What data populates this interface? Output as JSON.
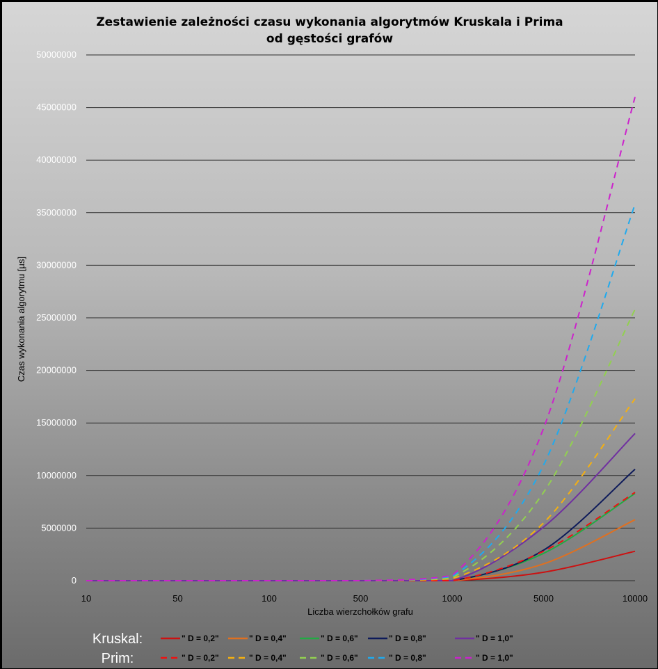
{
  "chart_data": {
    "type": "line",
    "title_lines": [
      "Zestawienie zależności czasu wykonania algorytmów Kruskala i Prima",
      "od gęstości grafów"
    ],
    "xlabel": "Liczba wierzchołków grafu",
    "ylabel": "Czas wykonania algorytmu [µs]",
    "categories": [
      "10",
      "50",
      "100",
      "500",
      "1000",
      "5000",
      "10000"
    ],
    "y_ticks": [
      "0",
      "5000000",
      "10000000",
      "15000000",
      "20000000",
      "25000000",
      "30000000",
      "35000000",
      "40000000",
      "45000000",
      "50000000"
    ],
    "ylim": [
      0,
      50000000
    ],
    "grid": true,
    "legend_placement": "bottom",
    "legend_groups": [
      {
        "label": "Kruskal:",
        "style": "solid",
        "series_indices": [
          0,
          1,
          2,
          3,
          4
        ]
      },
      {
        "label": "Prim:",
        "style": "dashed",
        "series_indices": [
          5,
          6,
          7,
          8,
          9
        ]
      }
    ],
    "series": [
      {
        "name": "\" D = 0,2\"",
        "group": "Kruskal",
        "color": "#cc1111",
        "dash": false,
        "values": [
          0,
          0,
          0,
          0,
          0,
          800000,
          2800000
        ]
      },
      {
        "name": "\" D = 0,4\"",
        "group": "Kruskal",
        "color": "#e07020",
        "dash": false,
        "values": [
          0,
          0,
          0,
          0,
          0,
          1600000,
          5800000
        ]
      },
      {
        "name": "\" D = 0,6\"",
        "group": "Kruskal",
        "color": "#22aa44",
        "dash": false,
        "values": [
          0,
          0,
          0,
          0,
          0,
          2600000,
          8300000
        ]
      },
      {
        "name": "\" D = 0,8\"",
        "group": "Kruskal",
        "color": "#0d1a5a",
        "dash": false,
        "values": [
          0,
          0,
          0,
          0,
          0,
          2900000,
          10600000
        ]
      },
      {
        "name": "\" D = 1,0\"",
        "group": "Kruskal",
        "color": "#7030a0",
        "dash": false,
        "values": [
          0,
          0,
          0,
          0,
          0,
          5100000,
          14000000
        ]
      },
      {
        "name": "\" D = 0,2\"",
        "group": "Prim",
        "color": "#ee1111",
        "dash": true,
        "values": [
          0,
          0,
          0,
          0,
          0,
          2800000,
          8400000
        ]
      },
      {
        "name": "\" D = 0,4\"",
        "group": "Prim",
        "color": "#f5b010",
        "dash": true,
        "values": [
          0,
          0,
          0,
          0,
          200000,
          5500000,
          17300000
        ]
      },
      {
        "name": "\" D = 0,6\"",
        "group": "Prim",
        "color": "#92d050",
        "dash": true,
        "values": [
          0,
          0,
          0,
          0,
          300000,
          8400000,
          25800000
        ]
      },
      {
        "name": "\" D = 0,8\"",
        "group": "Prim",
        "color": "#20aaee",
        "dash": true,
        "values": [
          0,
          0,
          0,
          0,
          400000,
          11000000,
          35800000
        ]
      },
      {
        "name": "\" D = 1,0\"",
        "group": "Prim",
        "color": "#cc22cc",
        "dash": true,
        "values": [
          0,
          0,
          0,
          0,
          500000,
          14500000,
          46000000
        ]
      }
    ]
  }
}
